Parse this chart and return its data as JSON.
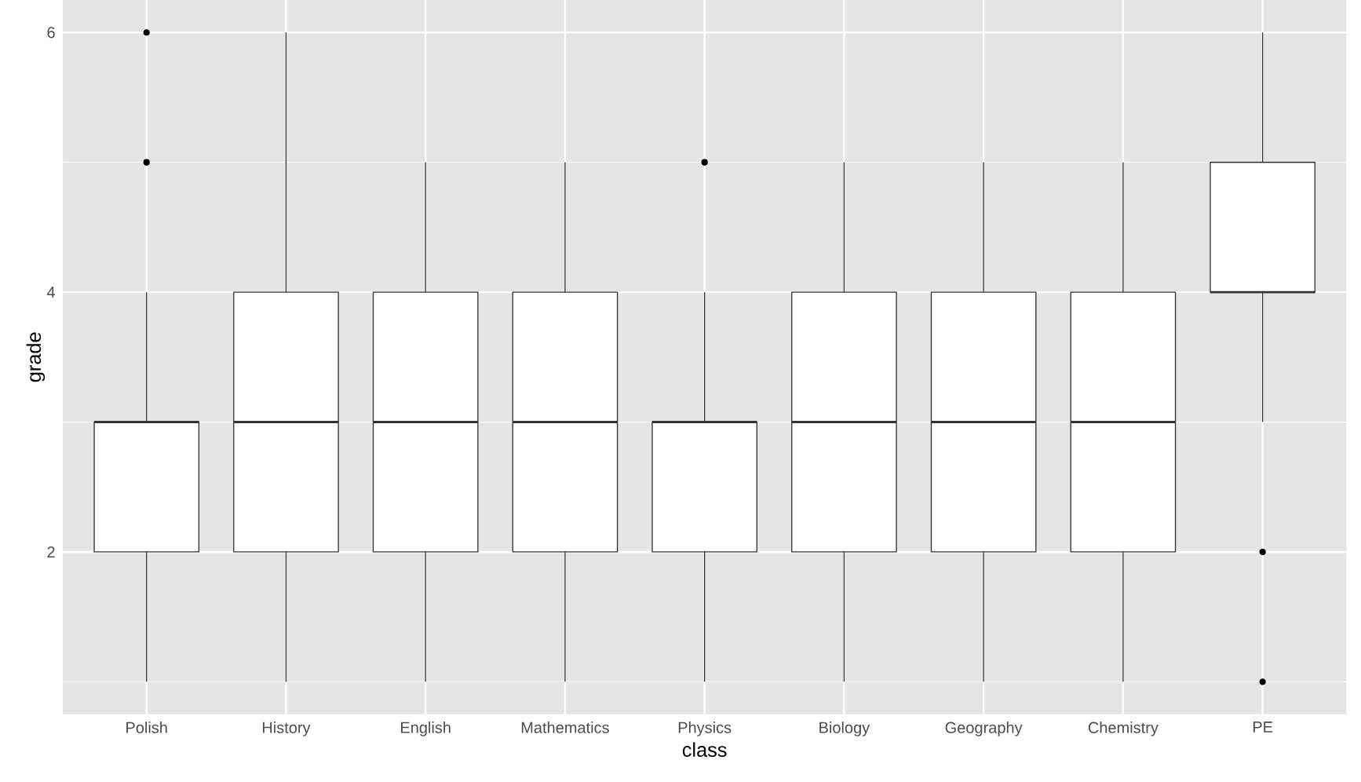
{
  "chart_data": {
    "type": "box",
    "xlabel": "class",
    "ylabel": "grade",
    "categories": [
      "Polish",
      "History",
      "English",
      "Mathematics",
      "Physics",
      "Biology",
      "Geography",
      "Chemistry",
      "PE"
    ],
    "boxes": [
      {
        "low": 1,
        "q1": 2,
        "median": 3,
        "q3": 3,
        "high": 4,
        "outliers": [
          5,
          6
        ]
      },
      {
        "low": 1,
        "q1": 2,
        "median": 3,
        "q3": 4,
        "high": 6
      },
      {
        "low": 1,
        "q1": 2,
        "median": 3,
        "q3": 4,
        "high": 5
      },
      {
        "low": 1,
        "q1": 2,
        "median": 3,
        "q3": 4,
        "high": 5
      },
      {
        "low": 1,
        "q1": 2,
        "median": 3,
        "q3": 3,
        "high": 4,
        "outliers": [
          5
        ]
      },
      {
        "low": 1,
        "q1": 2,
        "median": 3,
        "q3": 4,
        "high": 5
      },
      {
        "low": 1,
        "q1": 2,
        "median": 3,
        "q3": 4,
        "high": 5
      },
      {
        "low": 1,
        "q1": 2,
        "median": 3,
        "q3": 4,
        "high": 5
      },
      {
        "low": 3,
        "q1": 4,
        "median": 4,
        "q3": 5,
        "high": 6,
        "outliers": [
          1,
          2
        ]
      }
    ],
    "ylim": [
      0.75,
      6.25
    ],
    "yticks": [
      2,
      4,
      6
    ],
    "grid": true
  }
}
